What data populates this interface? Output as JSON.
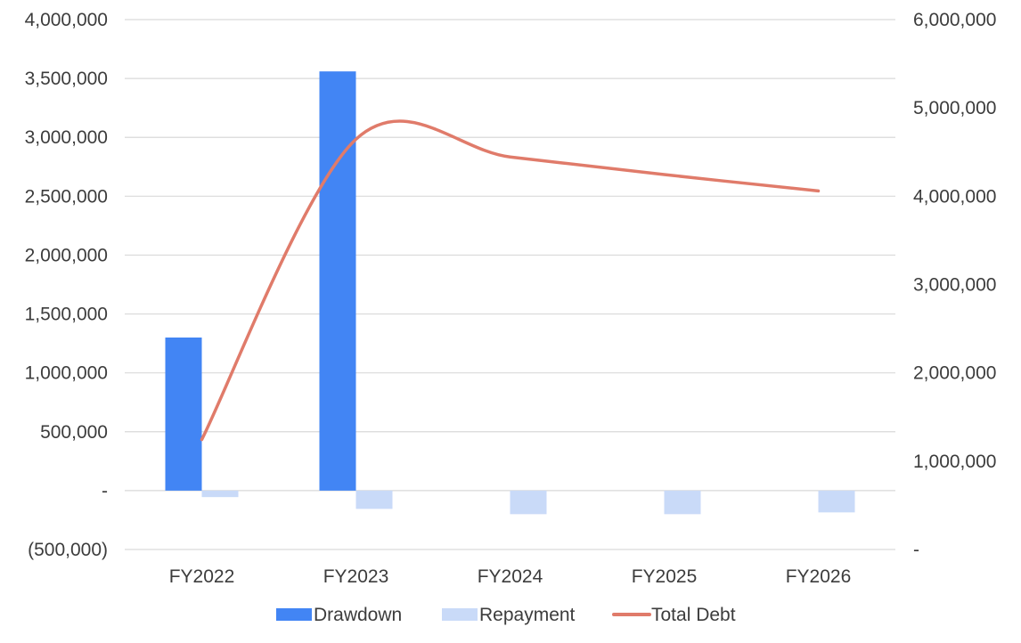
{
  "chart_data": {
    "type": "bar",
    "categories": [
      "FY2022",
      "FY2023",
      "FY2024",
      "FY2025",
      "FY2026"
    ],
    "series": [
      {
        "name": "Drawdown",
        "kind": "bar",
        "axis": "left",
        "color": "#4285f4",
        "values": [
          1300000,
          3560000,
          0,
          0,
          0
        ]
      },
      {
        "name": "Repayment",
        "kind": "bar",
        "axis": "left",
        "color": "#c9daf8",
        "values": [
          -55000,
          -155000,
          -200000,
          -200000,
          -185000
        ]
      },
      {
        "name": "Total Debt",
        "kind": "line",
        "smooth": true,
        "axis": "right",
        "color": "#e07b6a",
        "values": [
          1245000,
          4645000,
          4445000,
          4245000,
          4060000
        ]
      }
    ],
    "y_left": {
      "ylim": [
        -500000,
        4000000
      ],
      "ticks": [
        -500000,
        0,
        500000,
        1000000,
        1500000,
        2000000,
        2500000,
        3000000,
        3500000,
        4000000
      ],
      "tick_labels": [
        "(500,000)",
        "-",
        "500,000",
        "1,000,000",
        "1,500,000",
        "2,000,000",
        "2,500,000",
        "3,000,000",
        "3,500,000",
        "4,000,000"
      ]
    },
    "y_right": {
      "ylim": [
        0,
        6000000
      ],
      "ticks": [
        0,
        1000000,
        2000000,
        3000000,
        4000000,
        5000000,
        6000000
      ],
      "tick_labels": [
        "-",
        "1,000,000",
        "2,000,000",
        "3,000,000",
        "4,000,000",
        "5,000,000",
        "6,000,000"
      ]
    },
    "grid": true,
    "legend_position": "bottom",
    "title": "",
    "xlabel": "",
    "ylabel": ""
  }
}
